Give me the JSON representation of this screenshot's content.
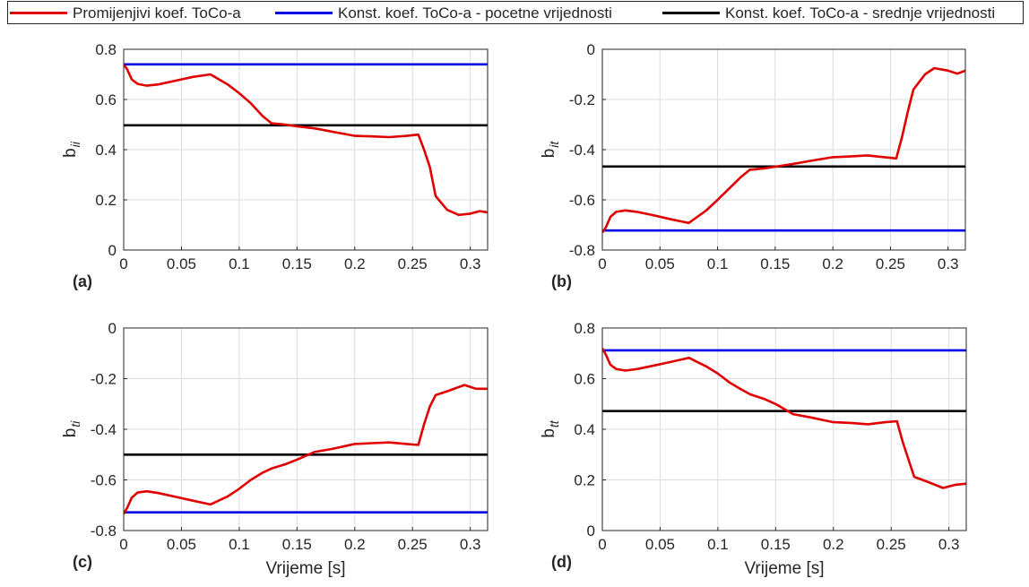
{
  "legend": {
    "items": [
      {
        "label": "Promijenjivi koef. ToCo-a",
        "color": "#e00000"
      },
      {
        "label": "Konst. koef. ToCo-a - pocetne vrijednosti",
        "color": "#0000e6"
      },
      {
        "label": "Konst. koef. ToCo-a - srednje vrijednosti",
        "color": "#000000"
      }
    ]
  },
  "colors": {
    "variable": "#e00000",
    "initial": "#0000e6",
    "mean": "#000000",
    "grid": "#dcdcdc"
  },
  "chart_data": [
    {
      "type": "line",
      "panel_label": "(a)",
      "ylabel": "b",
      "ylabel_sub": "ii",
      "xlabel": "",
      "xlim": [
        0,
        0.315
      ],
      "ylim": [
        0,
        0.8
      ],
      "xticks": [
        "0",
        "0.05",
        "0.1",
        "0.15",
        "0.2",
        "0.25",
        "0.3"
      ],
      "yticks": [
        "0",
        "0.2",
        "0.4",
        "0.6",
        "0.8"
      ],
      "grid": true,
      "series": [
        {
          "name": "Promijenjivi koef. ToCo-a",
          "x": [
            0,
            0.003,
            0.007,
            0.012,
            0.02,
            0.03,
            0.045,
            0.06,
            0.075,
            0.09,
            0.1,
            0.11,
            0.12,
            0.128,
            0.14,
            0.15,
            0.165,
            0.18,
            0.2,
            0.215,
            0.23,
            0.245,
            0.255,
            0.26,
            0.265,
            0.27,
            0.28,
            0.29,
            0.3,
            0.308,
            0.315
          ],
          "y": [
            0.74,
            0.72,
            0.68,
            0.662,
            0.655,
            0.66,
            0.675,
            0.69,
            0.7,
            0.66,
            0.625,
            0.585,
            0.535,
            0.505,
            0.5,
            0.493,
            0.485,
            0.472,
            0.455,
            0.453,
            0.45,
            0.455,
            0.46,
            0.4,
            0.33,
            0.215,
            0.16,
            0.14,
            0.145,
            0.155,
            0.15
          ]
        },
        {
          "name": "Konst. koef. ToCo-a - pocetne vrijednosti",
          "x": [
            0,
            0.315
          ],
          "y": [
            0.74,
            0.74
          ]
        },
        {
          "name": "Konst. koef. ToCo-a - srednje vrijednosti",
          "x": [
            0,
            0.315
          ],
          "y": [
            0.497,
            0.497
          ]
        }
      ]
    },
    {
      "type": "line",
      "panel_label": "(b)",
      "ylabel": "b",
      "ylabel_sub": "it",
      "xlabel": "",
      "xlim": [
        0,
        0.315
      ],
      "ylim": [
        -0.8,
        0
      ],
      "xticks": [
        "0",
        "0.05",
        "0.1",
        "0.15",
        "0.2",
        "0.25",
        "0.3"
      ],
      "yticks": [
        "-0.8",
        "-0.6",
        "-0.4",
        "-0.2",
        "0"
      ],
      "grid": true,
      "series": [
        {
          "name": "Promijenjivi koef. ToCo-a",
          "x": [
            0,
            0.003,
            0.007,
            0.012,
            0.02,
            0.03,
            0.045,
            0.06,
            0.075,
            0.09,
            0.1,
            0.11,
            0.12,
            0.128,
            0.14,
            0.15,
            0.165,
            0.18,
            0.2,
            0.215,
            0.23,
            0.245,
            0.255,
            0.26,
            0.265,
            0.27,
            0.28,
            0.288,
            0.3,
            0.308,
            0.315
          ],
          "y": [
            -0.73,
            -0.71,
            -0.668,
            -0.648,
            -0.642,
            -0.648,
            -0.662,
            -0.678,
            -0.692,
            -0.643,
            -0.6,
            -0.555,
            -0.51,
            -0.48,
            -0.475,
            -0.468,
            -0.457,
            -0.445,
            -0.43,
            -0.427,
            -0.423,
            -0.43,
            -0.435,
            -0.35,
            -0.25,
            -0.16,
            -0.1,
            -0.075,
            -0.085,
            -0.097,
            -0.085
          ]
        },
        {
          "name": "Konst. koef. ToCo-a - pocetne vrijednosti",
          "x": [
            0,
            0.315
          ],
          "y": [
            -0.722,
            -0.722
          ]
        },
        {
          "name": "Konst. koef. ToCo-a - srednje vrijednosti",
          "x": [
            0,
            0.315
          ],
          "y": [
            -0.467,
            -0.467
          ]
        }
      ]
    },
    {
      "type": "line",
      "panel_label": "(c)",
      "ylabel": "b",
      "ylabel_sub": "ti",
      "xlabel": "Vrijeme [s]",
      "xlim": [
        0,
        0.315
      ],
      "ylim": [
        -0.8,
        0
      ],
      "xticks": [
        "0",
        "0.05",
        "0.1",
        "0.15",
        "0.2",
        "0.25",
        "0.3"
      ],
      "yticks": [
        "-0.8",
        "-0.6",
        "-0.4",
        "-0.2",
        "0"
      ],
      "grid": true,
      "series": [
        {
          "name": "Promijenjivi koef. ToCo-a",
          "x": [
            0,
            0.003,
            0.007,
            0.012,
            0.02,
            0.03,
            0.045,
            0.06,
            0.075,
            0.09,
            0.1,
            0.11,
            0.12,
            0.128,
            0.14,
            0.15,
            0.165,
            0.18,
            0.2,
            0.215,
            0.23,
            0.245,
            0.255,
            0.26,
            0.265,
            0.27,
            0.28,
            0.295,
            0.305,
            0.315
          ],
          "y": [
            -0.735,
            -0.71,
            -0.67,
            -0.65,
            -0.645,
            -0.652,
            -0.667,
            -0.682,
            -0.697,
            -0.665,
            -0.635,
            -0.6,
            -0.572,
            -0.555,
            -0.538,
            -0.52,
            -0.49,
            -0.478,
            -0.458,
            -0.455,
            -0.452,
            -0.458,
            -0.462,
            -0.38,
            -0.31,
            -0.265,
            -0.25,
            -0.225,
            -0.24,
            -0.24
          ]
        },
        {
          "name": "Konst. koef. ToCo-a - pocetne vrijednosti",
          "x": [
            0,
            0.315
          ],
          "y": [
            -0.728,
            -0.728
          ]
        },
        {
          "name": "Konst. koef. ToCo-a - srednje vrijednosti",
          "x": [
            0,
            0.315
          ],
          "y": [
            -0.5,
            -0.5
          ]
        }
      ]
    },
    {
      "type": "line",
      "panel_label": "(d)",
      "ylabel": "b",
      "ylabel_sub": "tt",
      "xlabel": "Vrijeme [s]",
      "xlim": [
        0,
        0.315
      ],
      "ylim": [
        0,
        0.8
      ],
      "xticks": [
        "0",
        "0.05",
        "0.1",
        "0.15",
        "0.2",
        "0.25",
        "0.3"
      ],
      "yticks": [
        "0",
        "0.2",
        "0.4",
        "0.6",
        "0.8"
      ],
      "grid": true,
      "series": [
        {
          "name": "Promijenjivi koef. ToCo-a",
          "x": [
            0,
            0.003,
            0.007,
            0.012,
            0.02,
            0.03,
            0.045,
            0.06,
            0.075,
            0.09,
            0.1,
            0.11,
            0.12,
            0.128,
            0.14,
            0.15,
            0.165,
            0.18,
            0.2,
            0.215,
            0.23,
            0.245,
            0.255,
            0.26,
            0.265,
            0.27,
            0.28,
            0.295,
            0.305,
            0.315
          ],
          "y": [
            0.72,
            0.695,
            0.655,
            0.638,
            0.632,
            0.638,
            0.652,
            0.667,
            0.682,
            0.648,
            0.62,
            0.585,
            0.558,
            0.538,
            0.52,
            0.5,
            0.46,
            0.447,
            0.428,
            0.425,
            0.42,
            0.428,
            0.432,
            0.35,
            0.28,
            0.212,
            0.195,
            0.168,
            0.18,
            0.185
          ]
        },
        {
          "name": "Konst. koef. ToCo-a - pocetne vrijednosti",
          "x": [
            0,
            0.315
          ],
          "y": [
            0.712,
            0.712
          ]
        },
        {
          "name": "Konst. koef. ToCo-a - srednje vrijednosti",
          "x": [
            0,
            0.315
          ],
          "y": [
            0.472,
            0.472
          ]
        }
      ]
    }
  ]
}
